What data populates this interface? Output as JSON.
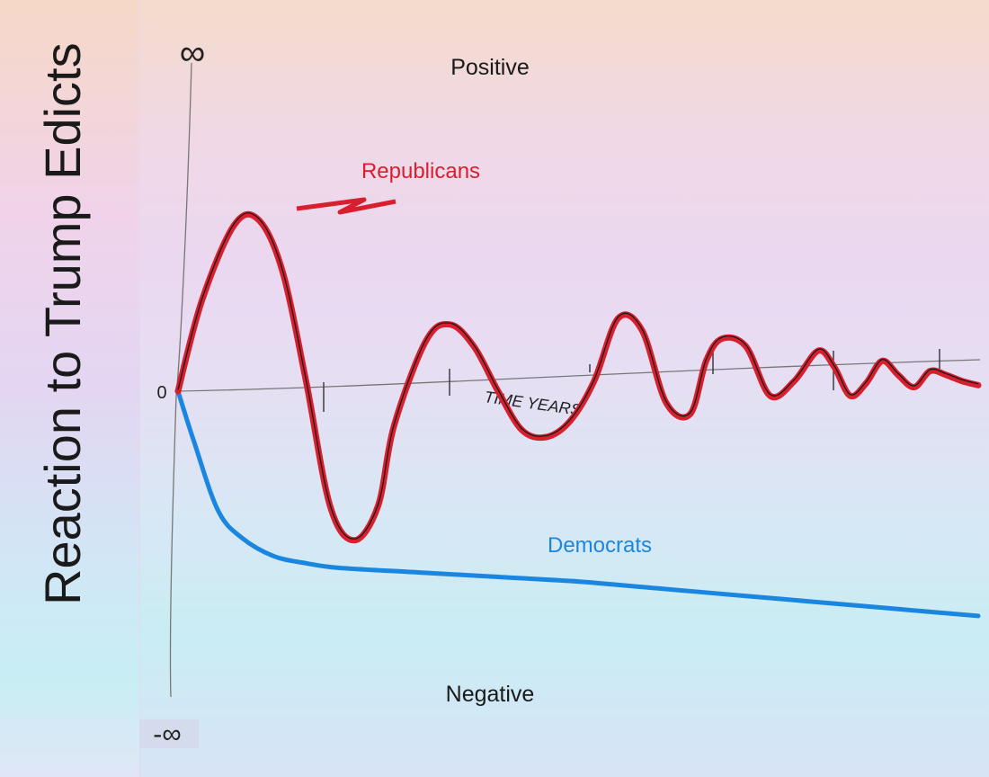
{
  "chart_data": {
    "type": "line",
    "title": "",
    "ylabel": "Reaction to Trump Edicts",
    "xlabel": "TIME YEARS",
    "y_top_label": "∞",
    "y_bottom_label": "-∞",
    "origin_label": "0",
    "region_labels": {
      "positive": "Positive",
      "negative": "Negative"
    },
    "ylim": [
      -1,
      1
    ],
    "xlim": [
      0,
      1
    ],
    "grid": false,
    "series": [
      {
        "name": "Republicans",
        "color": "#d81f2e",
        "x": [
          0,
          0.03,
          0.07,
          0.1,
          0.13,
          0.16,
          0.19,
          0.22,
          0.25,
          0.27,
          0.31,
          0.34,
          0.37,
          0.4,
          0.43,
          0.46,
          0.49,
          0.52,
          0.55,
          0.58,
          0.61,
          0.64,
          0.66,
          0.68,
          0.71,
          0.74,
          0.77,
          0.8,
          0.82,
          0.84,
          0.86,
          0.88,
          0.9,
          0.92,
          0.94,
          0.96,
          0.98,
          1.0
        ],
        "y": [
          0,
          0.45,
          0.82,
          0.85,
          0.6,
          0.05,
          -0.5,
          -0.65,
          -0.5,
          -0.15,
          0.25,
          0.33,
          0.22,
          0.0,
          -0.17,
          -0.2,
          -0.13,
          0.05,
          0.36,
          0.3,
          -0.05,
          -0.1,
          0.15,
          0.26,
          0.22,
          -0.02,
          0.05,
          0.2,
          0.12,
          -0.02,
          0.04,
          0.15,
          0.08,
          0.02,
          0.1,
          0.08,
          0.05,
          0.03
        ]
      },
      {
        "name": "Democrats",
        "color": "#1b86e0",
        "x": [
          0,
          0.02,
          0.05,
          0.08,
          0.12,
          0.16,
          0.2,
          0.3,
          0.4,
          0.5,
          0.6,
          0.7,
          0.8,
          0.9,
          1.0
        ],
        "y": [
          0,
          -0.22,
          -0.52,
          -0.64,
          -0.72,
          -0.75,
          -0.77,
          -0.79,
          -0.81,
          -0.83,
          -0.86,
          -0.89,
          -0.92,
          -0.95,
          -0.98
        ]
      }
    ]
  }
}
